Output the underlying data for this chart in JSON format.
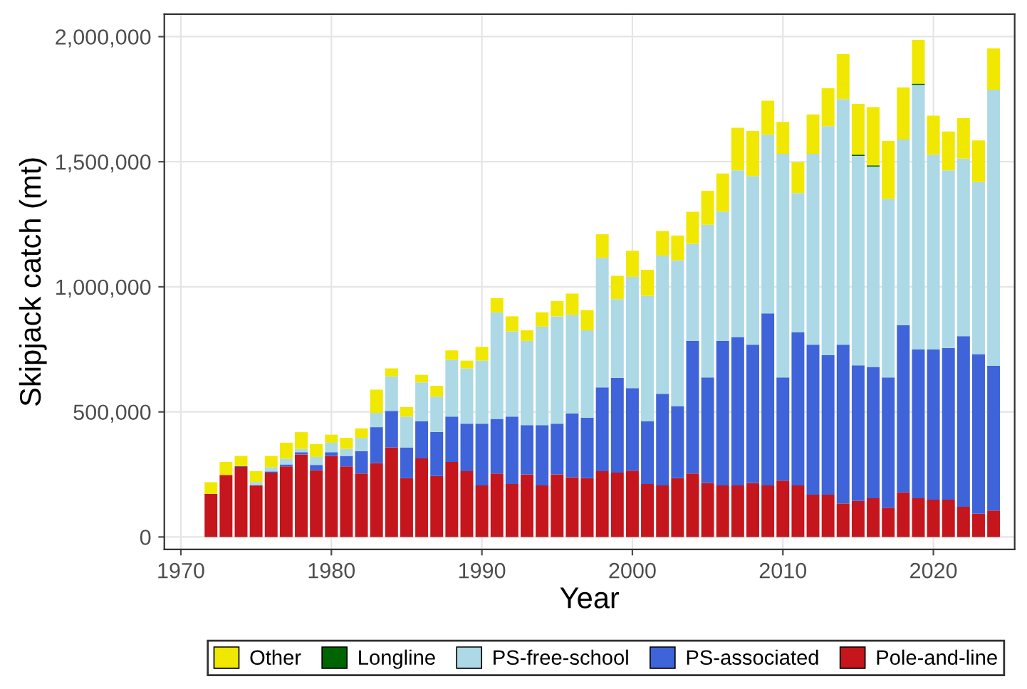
{
  "chart_data": {
    "type": "bar",
    "stacked": true,
    "xlabel": "Year",
    "ylabel": "Skipjack catch (mt)",
    "x": [
      1972,
      1973,
      1974,
      1975,
      1976,
      1977,
      1978,
      1979,
      1980,
      1981,
      1982,
      1983,
      1984,
      1985,
      1986,
      1987,
      1988,
      1989,
      1990,
      1991,
      1992,
      1993,
      1994,
      1995,
      1996,
      1997,
      1998,
      1999,
      2000,
      2001,
      2002,
      2003,
      2004,
      2005,
      2006,
      2007,
      2008,
      2009,
      2010,
      2011,
      2012,
      2013,
      2014,
      2015,
      2016,
      2017,
      2018,
      2019,
      2020,
      2021,
      2022,
      2023,
      2024
    ],
    "series": [
      {
        "name": "Pole-and-line",
        "color": "#c4161c",
        "values": [
          172000,
          248000,
          280000,
          206000,
          257000,
          282000,
          330000,
          267000,
          324000,
          282000,
          254000,
          295000,
          358000,
          235000,
          314000,
          244000,
          300000,
          263000,
          206000,
          254000,
          212000,
          250000,
          206000,
          250000,
          239000,
          235000,
          263000,
          257000,
          265000,
          212000,
          206000,
          235000,
          254000,
          216000,
          206000,
          206000,
          216000,
          206000,
          225000,
          206000,
          169000,
          169000,
          134000,
          144000,
          155000,
          117000,
          178000,
          155000,
          149000,
          149000,
          121000,
          93000,
          106000
        ]
      },
      {
        "name": "PS-associated",
        "color": "#3f63d9",
        "values": [
          0,
          0,
          3000,
          0,
          5000,
          8000,
          9000,
          21000,
          15000,
          42000,
          89000,
          144000,
          146000,
          123000,
          148000,
          176000,
          181000,
          190000,
          247000,
          218000,
          269000,
          197000,
          241000,
          203000,
          255000,
          242000,
          335000,
          379000,
          330000,
          250000,
          366000,
          288000,
          530000,
          422000,
          578000,
          593000,
          553000,
          688000,
          413000,
          612000,
          600000,
          558000,
          635000,
          542000,
          525000,
          521000,
          669000,
          595000,
          601000,
          607000,
          682000,
          638000,
          578000
        ]
      },
      {
        "name": "PS-free-school",
        "color": "#add8e6",
        "values": [
          null,
          null,
          null,
          14000,
          17000,
          23000,
          13000,
          32000,
          38000,
          28000,
          53000,
          57000,
          138000,
          123000,
          156000,
          141000,
          227000,
          221000,
          252000,
          426000,
          341000,
          337000,
          394000,
          429000,
          394000,
          349000,
          518000,
          315000,
          445000,
          502000,
          553000,
          583000,
          388000,
          610000,
          517000,
          667000,
          674000,
          714000,
          894000,
          557000,
          763000,
          915000,
          981000,
          837000,
          801000,
          714000,
          742000,
          1057000,
          778000,
          710000,
          710000,
          688000,
          1104000
        ]
      },
      {
        "name": "Longline",
        "color": "#006400",
        "values": [
          0,
          0,
          0,
          0,
          0,
          0,
          0,
          0,
          0,
          0,
          0,
          0,
          0,
          0,
          0,
          0,
          0,
          0,
          0,
          0,
          0,
          0,
          0,
          0,
          0,
          0,
          0,
          0,
          0,
          0,
          0,
          0,
          0,
          0,
          0,
          0,
          0,
          0,
          0,
          0,
          0,
          0,
          0,
          5000,
          5000,
          0,
          0,
          5000,
          0,
          0,
          0,
          0,
          0
        ]
      },
      {
        "name": "Other",
        "color": "#f0e800",
        "values": [
          47000,
          52000,
          41000,
          43000,
          45000,
          64000,
          67000,
          51000,
          32000,
          44000,
          38000,
          93000,
          32000,
          38000,
          30000,
          43000,
          38000,
          31000,
          55000,
          57000,
          60000,
          42000,
          57000,
          61000,
          85000,
          81000,
          94000,
          93000,
          104000,
          104000,
          98000,
          99000,
          128000,
          136000,
          152000,
          170000,
          180000,
          136000,
          127000,
          123000,
          157000,
          152000,
          180000,
          203000,
          232000,
          231000,
          208000,
          175000,
          156000,
          155000,
          161000,
          166000,
          165000
        ]
      }
    ],
    "xlim": [
      1968.9,
      2025.4
    ],
    "xticks": [
      1970,
      1980,
      1990,
      2000,
      2010,
      2020
    ],
    "ylim": [
      -50000,
      2090000
    ],
    "yticks": [
      {
        "value": 0,
        "label": "0"
      },
      {
        "value": 500000,
        "label": "500,000"
      },
      {
        "value": 1000000,
        "label": "1,000,000"
      },
      {
        "value": 1500000,
        "label": "1,500,000"
      },
      {
        "value": 2000000,
        "label": "2,000,000"
      }
    ],
    "grid": true,
    "legend": "bottom"
  }
}
